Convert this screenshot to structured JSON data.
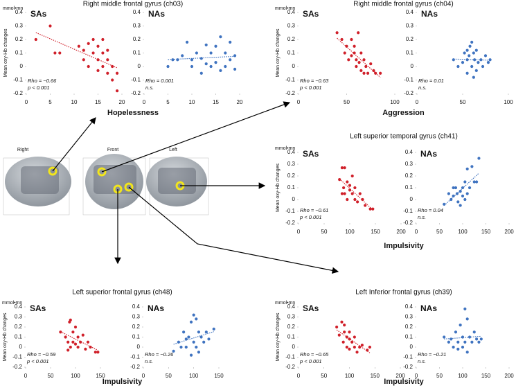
{
  "chart_data": [
    {
      "type": "scatter",
      "title": "Right middle frontal gyrus (ch03)",
      "unit": "mmol•mn",
      "y_label": "Mean oxy-Hb changes",
      "x_label": "Hopelessness",
      "xlim": [
        0,
        20
      ],
      "xticks": [
        0,
        5,
        10,
        15,
        20
      ],
      "ylim": [
        -0.2,
        0.4
      ],
      "yticks": [
        0.4,
        0.3,
        0.2,
        0.1,
        0,
        -0.1,
        -0.2
      ],
      "subplots": [
        {
          "name": "SAs",
          "color": "#d0202a",
          "x": [
            2,
            5,
            6,
            7,
            11,
            12,
            12,
            13,
            14,
            14,
            15,
            15,
            16,
            16,
            16,
            17,
            17,
            17,
            18,
            18,
            19,
            19,
            13,
            15
          ],
          "y": [
            0.2,
            0.3,
            0.1,
            0.1,
            0.15,
            0.12,
            0.05,
            0.17,
            0.2,
            0.1,
            0.15,
            0.05,
            0.2,
            0.1,
            0.0,
            0.12,
            0.05,
            -0.05,
            0.0,
            -0.1,
            -0.05,
            -0.18,
            0.0,
            -0.03
          ],
          "rho_label": "Rho = −0.66",
          "p_label": "p < 0.001"
        },
        {
          "name": "NAs",
          "color": "#3f73c0",
          "x": [
            5,
            6,
            7,
            8,
            9,
            10,
            10,
            11,
            12,
            13,
            13,
            14,
            14,
            15,
            15,
            16,
            16,
            17,
            17,
            18,
            18,
            19,
            19,
            12
          ],
          "y": [
            0.0,
            0.05,
            0.05,
            0.08,
            0.18,
            0.05,
            0.0,
            0.1,
            0.06,
            0.16,
            0.02,
            0.0,
            0.1,
            0.15,
            0.03,
            0.22,
            -0.03,
            0.1,
            0.0,
            0.18,
            0.05,
            0.08,
            -0.02,
            -0.05
          ],
          "rho_label": "Rho = 0.001",
          "p_label": "n.s."
        }
      ]
    },
    {
      "type": "scatter",
      "title": "Right middle frontal gyrus (ch04)",
      "unit": "mmol•mn",
      "y_label": "Mean oxy-Hb changes",
      "x_label": "Aggression",
      "xlim": [
        0,
        100
      ],
      "xticks": [
        0,
        50,
        100
      ],
      "ylim": [
        -0.2,
        0.4
      ],
      "yticks": [
        0.4,
        0.3,
        0.2,
        0.1,
        0,
        -0.1,
        -0.2
      ],
      "subplots": [
        {
          "name": "SAs",
          "color": "#d0202a",
          "x": [
            40,
            45,
            48,
            50,
            52,
            55,
            55,
            58,
            60,
            60,
            62,
            63,
            65,
            65,
            68,
            70,
            72,
            75,
            78,
            80,
            85,
            58,
            68
          ],
          "y": [
            0.25,
            0.2,
            0.1,
            0.15,
            0.05,
            0.2,
            0.08,
            0.1,
            0.0,
            0.05,
            0.25,
            0.03,
            0.1,
            -0.03,
            0.05,
            0.0,
            -0.05,
            0.02,
            -0.03,
            -0.05,
            -0.05,
            0.15,
            -0.05
          ],
          "rho_label": "Rho = −0.63",
          "p_label": "p < 0.001"
        },
        {
          "name": "NAs",
          "color": "#3f73c0",
          "x": [
            40,
            45,
            50,
            52,
            55,
            55,
            57,
            58,
            60,
            60,
            62,
            63,
            65,
            65,
            67,
            70,
            72,
            75,
            78,
            80,
            62,
            55
          ],
          "y": [
            0.05,
            0.0,
            0.03,
            0.1,
            0.05,
            -0.05,
            0.08,
            0.15,
            0.18,
            0.0,
            0.1,
            0.05,
            0.12,
            -0.03,
            0.03,
            0.05,
            0.0,
            0.08,
            0.03,
            0.05,
            -0.08,
            0.12
          ],
          "rho_label": "Rho = 0.01",
          "p_label": "n.s."
        }
      ]
    },
    {
      "type": "scatter",
      "title": "Left superior temporal gyrus (ch41)",
      "unit": "mmol•mn",
      "y_label": "Mean oxy-Hb changes",
      "x_label": "Impulsivity",
      "xlim": [
        0,
        200
      ],
      "xticks": [
        0,
        50,
        100,
        150,
        200
      ],
      "ylim": [
        -0.2,
        0.4
      ],
      "yticks": [
        0.4,
        0.3,
        0.2,
        0.1,
        0,
        -0.1,
        -0.2
      ],
      "subplots": [
        {
          "name": "SAs",
          "color": "#d0202a",
          "x": [
            80,
            85,
            90,
            88,
            90,
            95,
            95,
            100,
            100,
            105,
            105,
            110,
            110,
            115,
            120,
            125,
            130,
            140,
            145,
            85
          ],
          "y": [
            0.17,
            0.27,
            0.27,
            0.1,
            0.05,
            0.15,
            0.0,
            0.12,
            0.08,
            0.2,
            0.05,
            0.0,
            0.1,
            -0.02,
            0.05,
            0.0,
            -0.05,
            -0.08,
            -0.08,
            0.05
          ],
          "rho_label": "Rho = −0.61",
          "p_label": "p < 0.001"
        },
        {
          "name": "NAs",
          "color": "#3f73c0",
          "x": [
            60,
            70,
            75,
            80,
            85,
            88,
            90,
            95,
            100,
            100,
            105,
            105,
            110,
            110,
            115,
            120,
            125,
            130,
            135,
            95,
            80
          ],
          "y": [
            -0.04,
            0.05,
            0.0,
            0.03,
            0.1,
            0.05,
            -0.02,
            0.07,
            0.1,
            0.03,
            0.0,
            0.15,
            0.26,
            0.05,
            0.1,
            0.28,
            0.15,
            0.15,
            0.35,
            -0.05,
            0.1
          ],
          "rho_label": "Rho = 0.04",
          "p_label": "n.s."
        }
      ]
    },
    {
      "type": "scatter",
      "title": "Left superior frontal gyrus (ch48)",
      "unit": "mmol•mn",
      "y_label": "Mean oxy-Hb changes",
      "x_label": "Impulsivity",
      "xlim": [
        0,
        150
      ],
      "xticks": [
        0,
        50,
        100,
        150
      ],
      "ylim": [
        -0.2,
        0.4
      ],
      "yticks": [
        0.4,
        0.3,
        0.2,
        0.1,
        0,
        -0.1,
        -0.2
      ],
      "subplots": [
        {
          "name": "SAs",
          "color": "#d0202a",
          "x": [
            70,
            80,
            85,
            88,
            90,
            90,
            95,
            95,
            100,
            100,
            105,
            105,
            110,
            115,
            120,
            125,
            130,
            140,
            145,
            85
          ],
          "y": [
            0.15,
            0.1,
            0.05,
            0.25,
            0.27,
            0.0,
            0.05,
            0.15,
            0.2,
            0.03,
            0.1,
            0.0,
            0.05,
            0.12,
            -0.02,
            0.05,
            0.0,
            -0.05,
            -0.05,
            -0.03
          ],
          "rho_label": "Rho = −0.59",
          "p_label": "p < 0.001"
        },
        {
          "name": "NAs",
          "color": "#3f73c0",
          "x": [
            60,
            70,
            75,
            80,
            85,
            90,
            95,
            100,
            100,
            105,
            105,
            110,
            115,
            120,
            125,
            130,
            140,
            95,
            110,
            85
          ],
          "y": [
            -0.04,
            0.05,
            0.0,
            0.15,
            0.08,
            0.1,
            0.25,
            0.32,
            0.05,
            0.28,
            0.0,
            0.15,
            0.1,
            0.05,
            0.15,
            0.08,
            0.18,
            -0.08,
            -0.05,
            0.0
          ],
          "rho_label": "Rho = −0.26",
          "p_label": "n.s."
        }
      ]
    },
    {
      "type": "scatter",
      "title": "Left Inferior frontal gyrus (ch39)",
      "unit": "mmol•mn",
      "y_label": "Mean oxy-Hb changes",
      "x_label": "Impulsivity",
      "xlim": [
        0,
        200
      ],
      "xticks": [
        0,
        50,
        100,
        150,
        200
      ],
      "ylim": [
        -0.2,
        0.4
      ],
      "yticks": [
        0.4,
        0.3,
        0.2,
        0.1,
        0,
        -0.1,
        -0.2
      ],
      "subplots": [
        {
          "name": "SAs",
          "color": "#d0202a",
          "x": [
            75,
            80,
            85,
            88,
            90,
            95,
            95,
            100,
            100,
            105,
            110,
            110,
            115,
            120,
            125,
            135,
            140,
            100,
            90
          ],
          "y": [
            0.2,
            0.12,
            0.25,
            0.05,
            0.15,
            0.1,
            0.0,
            0.08,
            0.15,
            0.05,
            0.0,
            0.1,
            -0.05,
            0.0,
            0.02,
            -0.03,
            0.0,
            -0.02,
            0.22
          ],
          "rho_label": "Rho = −0.65",
          "p_label": "p < 0.001"
        },
        {
          "name": "NAs",
          "color": "#3f73c0",
          "x": [
            60,
            70,
            75,
            80,
            85,
            90,
            95,
            100,
            100,
            105,
            105,
            110,
            115,
            120,
            125,
            130,
            135,
            140,
            90,
            110
          ],
          "y": [
            0.1,
            0.05,
            0.08,
            0.0,
            0.15,
            0.05,
            0.22,
            0.1,
            0.0,
            0.38,
            0.05,
            0.28,
            0.1,
            0.05,
            0.15,
            0.08,
            0.05,
            0.08,
            -0.02,
            -0.05
          ],
          "rho_label": "Rho = −0.21",
          "p_label": "n.s."
        }
      ]
    }
  ],
  "brain_views": [
    "Right",
    "Front",
    "Left"
  ]
}
